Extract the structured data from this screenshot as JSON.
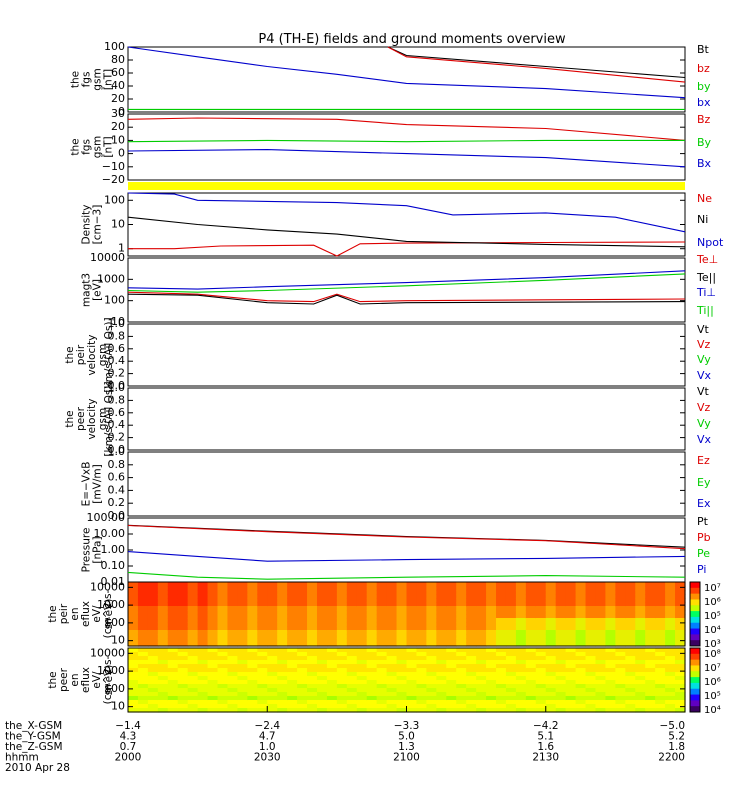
{
  "title": "P4 (TH-E) fields and ground moments overview",
  "colors": {
    "black": "#000000",
    "red": "#dd0000",
    "green": "#00cc00",
    "blue": "#0000cc",
    "yellow": "#ffff00"
  },
  "chart_data": [
    {
      "id": "fgs-mag",
      "type": "line",
      "ylabel": [
        "the",
        "fgs",
        "gsm",
        "[nT]"
      ],
      "ylim": [
        0,
        100
      ],
      "ticks": [
        "100",
        "80",
        "60",
        "40",
        "20",
        "0"
      ],
      "tick_values": [
        100,
        80,
        60,
        40,
        20,
        0
      ],
      "series": [
        {
          "name": "Bt",
          "color": "#000000",
          "points": [
            [
              2056,
              100
            ],
            [
              2100,
              87
            ],
            [
              2130,
              70
            ],
            [
              2200,
              53
            ]
          ]
        },
        {
          "name": "bz",
          "color": "#dd0000",
          "points": [
            [
              2056,
              100
            ],
            [
              2100,
              85
            ],
            [
              2130,
              67
            ],
            [
              2200,
              46
            ]
          ]
        },
        {
          "name": "by",
          "color": "#00cc00",
          "points": [
            [
              2000,
              4
            ],
            [
              2100,
              4
            ],
            [
              2130,
              4
            ],
            [
              2200,
              4
            ]
          ]
        },
        {
          "name": "bx",
          "color": "#0000cc",
          "points": [
            [
              2000,
              100
            ],
            [
              2015,
              85
            ],
            [
              2030,
              70
            ],
            [
              2045,
              58
            ],
            [
              2100,
              44
            ],
            [
              2130,
              36
            ],
            [
              2200,
              22
            ]
          ]
        }
      ]
    },
    {
      "id": "fgs-comp",
      "type": "line",
      "ylabel": [
        "the",
        "fgs",
        "gsm",
        "[nT]"
      ],
      "ylim": [
        -20,
        30
      ],
      "ticks": [
        "30",
        "20",
        "10",
        "0",
        "−10",
        "−20"
      ],
      "tick_values": [
        30,
        20,
        10,
        0,
        -10,
        -20
      ],
      "series": [
        {
          "name": "Bz",
          "color": "#dd0000",
          "points": [
            [
              2000,
              26
            ],
            [
              2015,
              27
            ],
            [
              2045,
              26
            ],
            [
              2100,
              22
            ],
            [
              2130,
              19
            ],
            [
              2200,
              10
            ]
          ]
        },
        {
          "name": "By",
          "color": "#00cc00",
          "points": [
            [
              2000,
              9
            ],
            [
              2030,
              10
            ],
            [
              2100,
              9
            ],
            [
              2130,
              10
            ],
            [
              2200,
              10
            ]
          ]
        },
        {
          "name": "Bx",
          "color": "#0000cc",
          "points": [
            [
              2000,
              2
            ],
            [
              2030,
              3
            ],
            [
              2100,
              0
            ],
            [
              2130,
              -3
            ],
            [
              2200,
              -10
            ]
          ]
        }
      ]
    },
    {
      "id": "density",
      "type": "line",
      "scale": "log",
      "ylabel": [
        "Density",
        "[cm−3]"
      ],
      "ylim": [
        0.5,
        200
      ],
      "ticks": [
        "100",
        "10",
        "1"
      ],
      "tick_values": [
        100,
        10,
        1
      ],
      "series": [
        {
          "name": "Ne",
          "color": "#dd0000",
          "points": [
            [
              2000,
              1
            ],
            [
              2010,
              1
            ],
            [
              2020,
              1.3
            ],
            [
              2040,
              1.4
            ],
            [
              2045,
              0.5
            ],
            [
              2050,
              1.6
            ],
            [
              2100,
              1.7
            ],
            [
              2130,
              1.8
            ],
            [
              2200,
              1.9
            ]
          ]
        },
        {
          "name": "Ni",
          "color": "#000000",
          "points": [
            [
              2000,
              20
            ],
            [
              2015,
              10
            ],
            [
              2030,
              6
            ],
            [
              2045,
              4
            ],
            [
              2100,
              2
            ],
            [
              2130,
              1.5
            ],
            [
              2200,
              1.2
            ]
          ]
        },
        {
          "name": "Npot",
          "color": "#0000cc",
          "points": [
            [
              2000,
              200
            ],
            [
              2010,
              180
            ],
            [
              2015,
              100
            ],
            [
              2030,
              90
            ],
            [
              2045,
              80
            ],
            [
              2100,
              60
            ],
            [
              2110,
              25
            ],
            [
              2130,
              30
            ],
            [
              2145,
              20
            ],
            [
              2200,
              5
            ]
          ]
        }
      ]
    },
    {
      "id": "temperature",
      "type": "line",
      "scale": "log",
      "ylabel": [
        "magt3",
        "[eV]"
      ],
      "ylim": [
        10,
        10000
      ],
      "ticks": [
        "10000",
        "1000",
        "100",
        "10"
      ],
      "tick_values": [
        10000,
        1000,
        100,
        10
      ],
      "series": [
        {
          "name": "Te⊥",
          "color": "#dd0000",
          "points": [
            [
              2000,
              250
            ],
            [
              2015,
              200
            ],
            [
              2030,
              100
            ],
            [
              2040,
              90
            ],
            [
              2045,
              200
            ],
            [
              2050,
              90
            ],
            [
              2100,
              100
            ],
            [
              2130,
              110
            ],
            [
              2200,
              120
            ]
          ]
        },
        {
          "name": "Te||",
          "color": "#000000",
          "points": [
            [
              2000,
              200
            ],
            [
              2015,
              180
            ],
            [
              2030,
              80
            ],
            [
              2040,
              70
            ],
            [
              2045,
              180
            ],
            [
              2050,
              70
            ],
            [
              2100,
              80
            ],
            [
              2200,
              90
            ]
          ]
        },
        {
          "name": "Ti⊥",
          "color": "#0000cc",
          "points": [
            [
              2000,
              400
            ],
            [
              2015,
              350
            ],
            [
              2030,
              450
            ],
            [
              2100,
              700
            ],
            [
              2130,
              1200
            ],
            [
              2200,
              2500
            ]
          ]
        },
        {
          "name": "Ti||",
          "color": "#00cc00",
          "points": [
            [
              2000,
              300
            ],
            [
              2015,
              250
            ],
            [
              2030,
              300
            ],
            [
              2100,
              500
            ],
            [
              2130,
              900
            ],
            [
              2200,
              1800
            ]
          ]
        }
      ]
    },
    {
      "id": "peir-velocity",
      "type": "line",
      "ylabel": [
        "the",
        "peir",
        "velocity",
        "gsm",
        "[km/s (All Qs)]"
      ],
      "ylim": [
        0,
        1
      ],
      "ticks": [
        "1.0",
        "0.8",
        "0.6",
        "0.4",
        "0.2",
        "0.0"
      ],
      "tick_values": [
        1,
        0.8,
        0.6,
        0.4,
        0.2,
        0
      ],
      "series": [
        {
          "name": "Vt",
          "color": "#000000",
          "points": []
        },
        {
          "name": "Vz",
          "color": "#dd0000",
          "points": []
        },
        {
          "name": "Vy",
          "color": "#00cc00",
          "points": []
        },
        {
          "name": "Vx",
          "color": "#0000cc",
          "points": []
        }
      ]
    },
    {
      "id": "peer-velocity",
      "type": "line",
      "ylabel": [
        "the",
        "peer",
        "velocity",
        "gsm",
        "[km/s (All Qs)]"
      ],
      "ylim": [
        0,
        1
      ],
      "ticks": [
        "1.0",
        "0.8",
        "0.6",
        "0.4",
        "0.2",
        "0.0"
      ],
      "tick_values": [
        1,
        0.8,
        0.6,
        0.4,
        0.2,
        0
      ],
      "series": [
        {
          "name": "Vt",
          "color": "#000000",
          "points": []
        },
        {
          "name": "Vz",
          "color": "#dd0000",
          "points": []
        },
        {
          "name": "Vy",
          "color": "#00cc00",
          "points": []
        },
        {
          "name": "Vx",
          "color": "#0000cc",
          "points": []
        }
      ]
    },
    {
      "id": "efield",
      "type": "line",
      "ylabel": [
        "E=−VxB",
        "[mV/m]"
      ],
      "ylim": [
        0,
        1
      ],
      "ticks": [
        "1.0",
        "0.8",
        "0.6",
        "0.4",
        "0.2",
        "0.0"
      ],
      "tick_values": [
        1,
        0.8,
        0.6,
        0.4,
        0.2,
        0
      ],
      "series": [
        {
          "name": "Ez",
          "color": "#dd0000",
          "points": []
        },
        {
          "name": "Ey",
          "color": "#00cc00",
          "points": []
        },
        {
          "name": "Ex",
          "color": "#0000cc",
          "points": []
        }
      ]
    },
    {
      "id": "pressure",
      "type": "line",
      "scale": "log",
      "ylabel": [
        "Pressure",
        "[nPa]"
      ],
      "ylim": [
        0.01,
        100
      ],
      "ticks": [
        "100.00",
        "10.00",
        "1.00",
        "0.10",
        "0.01"
      ],
      "tick_values": [
        100,
        10,
        1,
        0.1,
        0.01
      ],
      "series": [
        {
          "name": "Pt",
          "color": "#000000",
          "points": [
            [
              2000,
              35
            ],
            [
              2030,
              15
            ],
            [
              2100,
              7
            ],
            [
              2130,
              4
            ],
            [
              2200,
              1.5
            ]
          ]
        },
        {
          "name": "Pb",
          "color": "#dd0000",
          "points": [
            [
              2000,
              34
            ],
            [
              2030,
              14
            ],
            [
              2100,
              6.5
            ],
            [
              2130,
              3.8
            ],
            [
              2200,
              1.2
            ]
          ]
        },
        {
          "name": "Pe",
          "color": "#00cc00",
          "points": [
            [
              2000,
              0.04
            ],
            [
              2015,
              0.02
            ],
            [
              2030,
              0.015
            ],
            [
              2100,
              0.02
            ],
            [
              2130,
              0.025
            ],
            [
              2200,
              0.02
            ]
          ]
        },
        {
          "name": "Pi",
          "color": "#0000cc",
          "points": [
            [
              2000,
              0.8
            ],
            [
              2015,
              0.4
            ],
            [
              2030,
              0.2
            ],
            [
              2100,
              0.25
            ],
            [
              2130,
              0.3
            ],
            [
              2200,
              0.4
            ]
          ]
        }
      ]
    },
    {
      "id": "peir-eflux",
      "type": "heatmap",
      "scale": "log",
      "ylabel": [
        "the",
        "peir",
        "en",
        "eflux",
        "eV/",
        "(cm^2-s-",
        "sr-eV)"
      ],
      "ylim": [
        5,
        20000
      ],
      "ticks": [
        "10000",
        "1000",
        "100",
        "10"
      ],
      "tick_values": [
        10000,
        1000,
        100,
        10
      ],
      "colorbar_ticks": [
        "10⁷",
        "10⁶",
        "10⁵",
        "10⁴",
        "10³"
      ],
      "colorbar_range": [
        2,
        7
      ]
    },
    {
      "id": "peer-eflux",
      "type": "heatmap",
      "scale": "log",
      "ylabel": [
        "the",
        "peer",
        "en",
        "eflux",
        "eV/",
        "(cm^2-s-",
        "sr-eV)"
      ],
      "ylim": [
        5,
        20000
      ],
      "ticks": [
        "10000",
        "1000",
        "100",
        "10"
      ],
      "tick_values": [
        10000,
        1000,
        100,
        10
      ],
      "colorbar_ticks": [
        "10⁸",
        "10⁷",
        "10⁶",
        "10⁵",
        "10⁴"
      ],
      "colorbar_range": [
        3,
        8
      ]
    }
  ],
  "xaxis": {
    "range": [
      2000,
      2200
    ],
    "rows": [
      {
        "label": "the_X-GSM",
        "values": [
          "−1.4",
          "−2.4",
          "−3.3",
          "−4.2",
          "−5.0"
        ]
      },
      {
        "label": "the_Y-GSM",
        "values": [
          "4.3",
          "4.7",
          "5.0",
          "5.1",
          "5.2"
        ]
      },
      {
        "label": "the_Z-GSM",
        "values": [
          "0.7",
          "1.0",
          "1.3",
          "1.6",
          "1.8"
        ]
      },
      {
        "label": "hhmm",
        "values": [
          "2000",
          "2030",
          "2100",
          "2130",
          "2200"
        ]
      },
      {
        "label": "2010 Apr 28",
        "values": []
      }
    ]
  }
}
